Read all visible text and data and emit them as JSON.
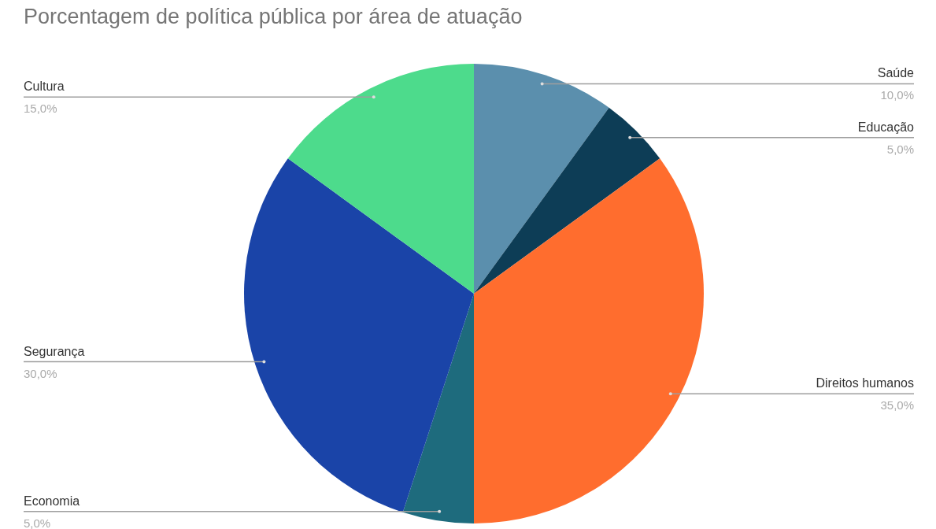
{
  "chart_data": {
    "type": "pie",
    "title": "Porcentagem de política pública por área de atuação",
    "categories": [
      "Saúde",
      "Educação",
      "Direitos humanos",
      "Economia",
      "Segurança",
      "Cultura"
    ],
    "values": [
      10,
      5,
      35,
      5,
      30,
      15
    ],
    "value_labels": [
      "10,0%",
      "5,0%",
      "35,0%",
      "5,0%",
      "30,0%",
      "15,0%"
    ],
    "colors": [
      "#5b8fad",
      "#0d3d56",
      "#ff6d2e",
      "#1e6b7d",
      "#1a44a8",
      "#4ddb8c"
    ],
    "legend": false
  }
}
